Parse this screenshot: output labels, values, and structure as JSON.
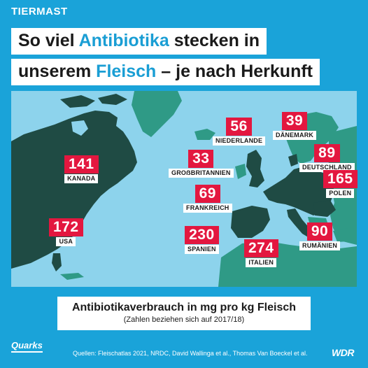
{
  "topic": "TIERMAST",
  "title": {
    "line1_pre": "So viel ",
    "line1_highlight": "Antibiotika",
    "line1_post": " stecken in",
    "line2_pre": "unserem ",
    "line2_highlight": "Fleisch",
    "line2_post": " – je nach Herkunft"
  },
  "colors": {
    "background": "#1aa3d9",
    "ocean": "#8dd3ec",
    "land_other": "#2f9a86",
    "land_highlight": "#1f4b44",
    "value_badge": "#e3173f",
    "title_highlight": "#1a9ed4"
  },
  "countries": [
    {
      "name": "KANADA",
      "value": "141"
    },
    {
      "name": "USA",
      "value": "172"
    },
    {
      "name": "NIEDERLANDE",
      "value": "56"
    },
    {
      "name": "DÄNEMARK",
      "value": "39"
    },
    {
      "name": "GROẞBRITANNIEN",
      "value": "33"
    },
    {
      "name": "DEUTSCHLAND",
      "value": "89"
    },
    {
      "name": "POLEN",
      "value": "165"
    },
    {
      "name": "FRANKREICH",
      "value": "69"
    },
    {
      "name": "SPANIEN",
      "value": "230"
    },
    {
      "name": "ITALIEN",
      "value": "274"
    },
    {
      "name": "RUMÄNIEN",
      "value": "90"
    }
  ],
  "legend": {
    "main": "Antibiotikaverbrauch in mg pro kg Fleisch",
    "sub": "(Zahlen beziehen sich auf 2017/18)"
  },
  "footer": {
    "logo_left": "Quarks",
    "sources": "Quellen: Fleischatlas 2021, NRDC, David Wallinga et al., Thomas Van Boeckel et al.",
    "logo_right": "WDR"
  }
}
